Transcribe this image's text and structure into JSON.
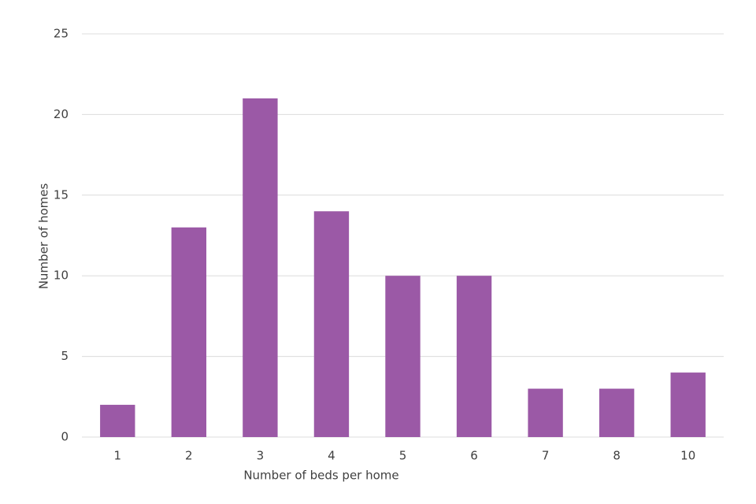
{
  "chart_data": {
    "type": "bar",
    "x_label": "Number of beds per home",
    "y_label": "Number of homes",
    "categories": [
      "1",
      "2",
      "3",
      "4",
      "5",
      "6",
      "7",
      "8",
      "10"
    ],
    "values": [
      2,
      13,
      21,
      14,
      10,
      10,
      3,
      3,
      4
    ],
    "color": "#9b59a6",
    "ylim": [
      0,
      25
    ],
    "yticks": [
      0,
      5,
      10,
      15,
      20,
      25
    ],
    "grid": true
  }
}
